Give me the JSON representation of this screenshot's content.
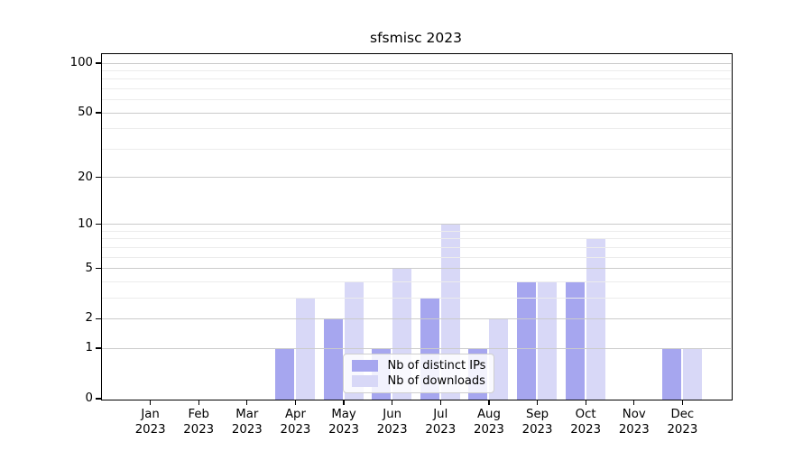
{
  "chart_data": {
    "type": "bar",
    "title": "sfsmisc 2023",
    "categories": [
      "Jan 2023",
      "Feb 2023",
      "Mar 2023",
      "Apr 2023",
      "May 2023",
      "Jun 2023",
      "Jul 2023",
      "Aug 2023",
      "Sep 2023",
      "Oct 2023",
      "Nov 2023",
      "Dec 2023"
    ],
    "series": [
      {
        "name": "Nb of distinct IPs",
        "color": "#a6a6ef",
        "values": [
          0,
          0,
          0,
          1,
          2,
          1,
          3,
          1,
          4,
          4,
          0,
          1
        ]
      },
      {
        "name": "Nb of downloads",
        "color": "#d8d8f7",
        "values": [
          0,
          0,
          0,
          3,
          4,
          5,
          10,
          2,
          4,
          8,
          0,
          1
        ]
      }
    ],
    "xlabel": "",
    "ylabel": "",
    "yscale": "log1p",
    "ylim": [
      0,
      113
    ],
    "yticks": [
      0,
      1,
      2,
      5,
      10,
      20,
      50,
      100
    ],
    "minor_gridlines": [
      3,
      4,
      6,
      7,
      8,
      9,
      30,
      40,
      60,
      70,
      80,
      90
    ],
    "grid": true,
    "legend_position": "lower-center-inside",
    "colors": {
      "axis": "#000000",
      "grid_major": "#cbcbcb",
      "grid_minor": "#ececec",
      "background": "#ffffff",
      "legend_border": "#cfcfcf"
    }
  }
}
